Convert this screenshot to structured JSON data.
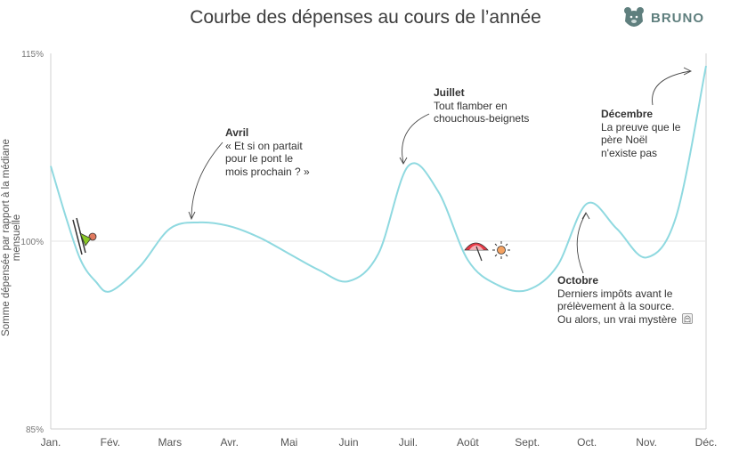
{
  "brand": {
    "name": "BRUNO",
    "logo_icon": "bear-icon"
  },
  "chart_data": {
    "type": "line",
    "title": "Courbe des dépenses au cours de l’année",
    "ylabel": "Somme dépensée par rapport à la médiane mensuelle",
    "xlabel": "",
    "y_ticks": [
      "115%",
      "100%",
      "85%"
    ],
    "ylim": [
      85,
      115
    ],
    "categories": [
      "Jan.",
      "Fév.",
      "Mars",
      "Avr.",
      "Mai",
      "Juin",
      "Juil.",
      "Août",
      "Sept.",
      "Oct.",
      "Nov.",
      "Déc."
    ],
    "grid": "horizontal line at 100%",
    "colors": {
      "line": "#8fd9e0",
      "grid": "#e6e6e6",
      "axis": "#cccccc"
    },
    "series": [
      {
        "x": [
          0,
          0.25,
          0.5,
          0.75,
          1.0,
          1.5,
          2.0,
          2.5,
          3.0,
          3.5,
          4.0,
          4.5,
          5.0,
          5.5,
          6.0,
          6.5,
          7.0,
          7.5,
          8.0,
          8.5,
          9.0,
          9.5,
          10.0,
          10.5,
          11.0
        ],
        "y": [
          106,
          102,
          98.5,
          96.8,
          96.0,
          98.0,
          101.0,
          101.5,
          101.2,
          100.3,
          99.0,
          97.7,
          96.8,
          99.0,
          106.0,
          104.0,
          98.5,
          96.5,
          96.1,
          98.0,
          103.0,
          101.0,
          98.7,
          102.0,
          114.0
        ]
      }
    ],
    "annotations": [
      {
        "title": "Avril",
        "text": [
          "« Et si on partait",
          "pour le pont le",
          "mois prochain ? »"
        ]
      },
      {
        "title": "Juillet",
        "text": [
          "Tout flamber en",
          "chouchous-beignets"
        ]
      },
      {
        "title": "Décembre",
        "text": [
          "La preuve que le",
          "père Noël",
          "n'existe pas"
        ]
      },
      {
        "title": "Octobre",
        "text": [
          "Derniers impôts avant le",
          "prélèvement à la source.",
          "Ou alors, un vrai mystère"
        ]
      }
    ],
    "icons": [
      "skier-icon",
      "beach-umbrella-icon",
      "sun-icon",
      "ghost-icon"
    ]
  }
}
